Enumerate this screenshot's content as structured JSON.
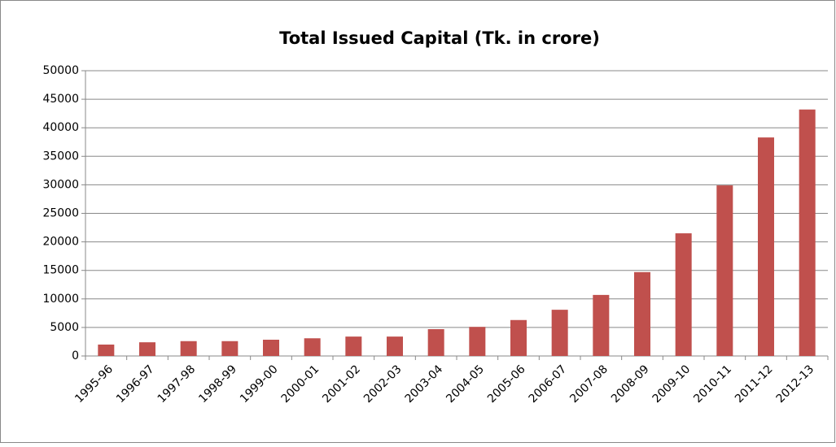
{
  "chart_data": {
    "type": "bar",
    "title": "Total Issued  Capital  (Tk. in crore)",
    "categories": [
      "1995-96",
      "1996-97",
      "1997-98",
      "1998-99",
      "1999-00",
      "2000-01",
      "2001-02",
      "2002-03",
      "2003-04",
      "2004-05",
      "2005-06",
      "2006-07",
      "2007-08",
      "2008-09",
      "2009-10",
      "2010-11",
      "2011-12",
      "2012-13"
    ],
    "values": [
      2000,
      2400,
      2600,
      2600,
      2850,
      3100,
      3400,
      3400,
      4700,
      5100,
      6300,
      8100,
      10700,
      14700,
      21500,
      29900,
      38300,
      43200
    ],
    "color": "#c0504d",
    "ylim": [
      0,
      50000
    ],
    "yticks": [
      0,
      5000,
      10000,
      15000,
      20000,
      25000,
      30000,
      35000,
      40000,
      45000,
      50000
    ],
    "grid": true
  }
}
